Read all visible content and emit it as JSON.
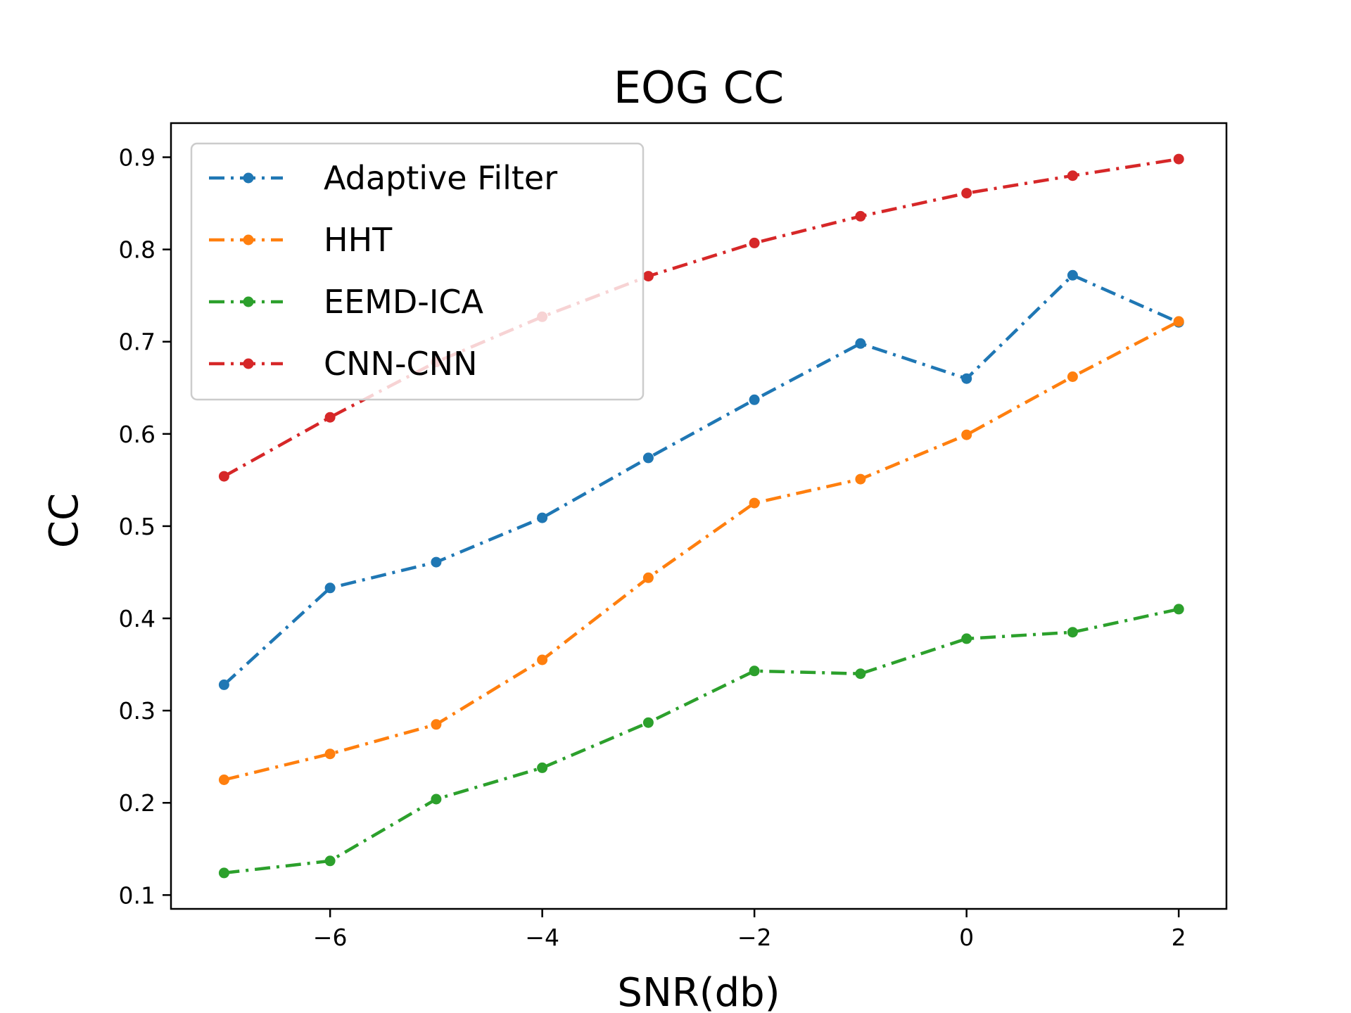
{
  "chart_data": {
    "type": "line",
    "title": "EOG CC",
    "xlabel": "SNR(db)",
    "ylabel": "CC",
    "xlim": [
      -7.5,
      2.45
    ],
    "ylim": [
      0.085,
      0.937
    ],
    "xticks": [
      -6,
      -4,
      -2,
      0,
      2
    ],
    "xtick_labels": [
      "−6",
      "−4",
      "−2",
      "0",
      "2"
    ],
    "yticks": [
      0.1,
      0.2,
      0.3,
      0.4,
      0.5,
      0.6,
      0.7,
      0.8,
      0.9
    ],
    "ytick_labels": [
      "0.1",
      "0.2",
      "0.3",
      "0.4",
      "0.5",
      "0.6",
      "0.7",
      "0.8",
      "0.9"
    ],
    "grid": false,
    "legend_position": "top-left",
    "line_style": "dash-dot",
    "x": [
      -7,
      -6,
      -5,
      -4,
      -3,
      -2,
      -1,
      0,
      1,
      2
    ],
    "series": [
      {
        "name": "Adaptive Filter",
        "color": "#1f77b4",
        "values": [
          0.328,
          0.433,
          0.461,
          0.509,
          0.574,
          0.637,
          0.698,
          0.66,
          0.772,
          0.721
        ]
      },
      {
        "name": "HHT",
        "color": "#ff7f0e",
        "values": [
          0.225,
          0.253,
          0.285,
          0.355,
          0.444,
          0.525,
          0.551,
          0.599,
          0.662,
          0.722
        ]
      },
      {
        "name": "EEMD-ICA",
        "color": "#2ca02c",
        "values": [
          0.124,
          0.137,
          0.204,
          0.238,
          0.287,
          0.343,
          0.34,
          0.378,
          0.385,
          0.41
        ]
      },
      {
        "name": "CNN-CNN",
        "color": "#d62728",
        "values": [
          0.554,
          0.618,
          0.678,
          0.727,
          0.771,
          0.807,
          0.836,
          0.861,
          0.88,
          0.898
        ]
      }
    ]
  }
}
